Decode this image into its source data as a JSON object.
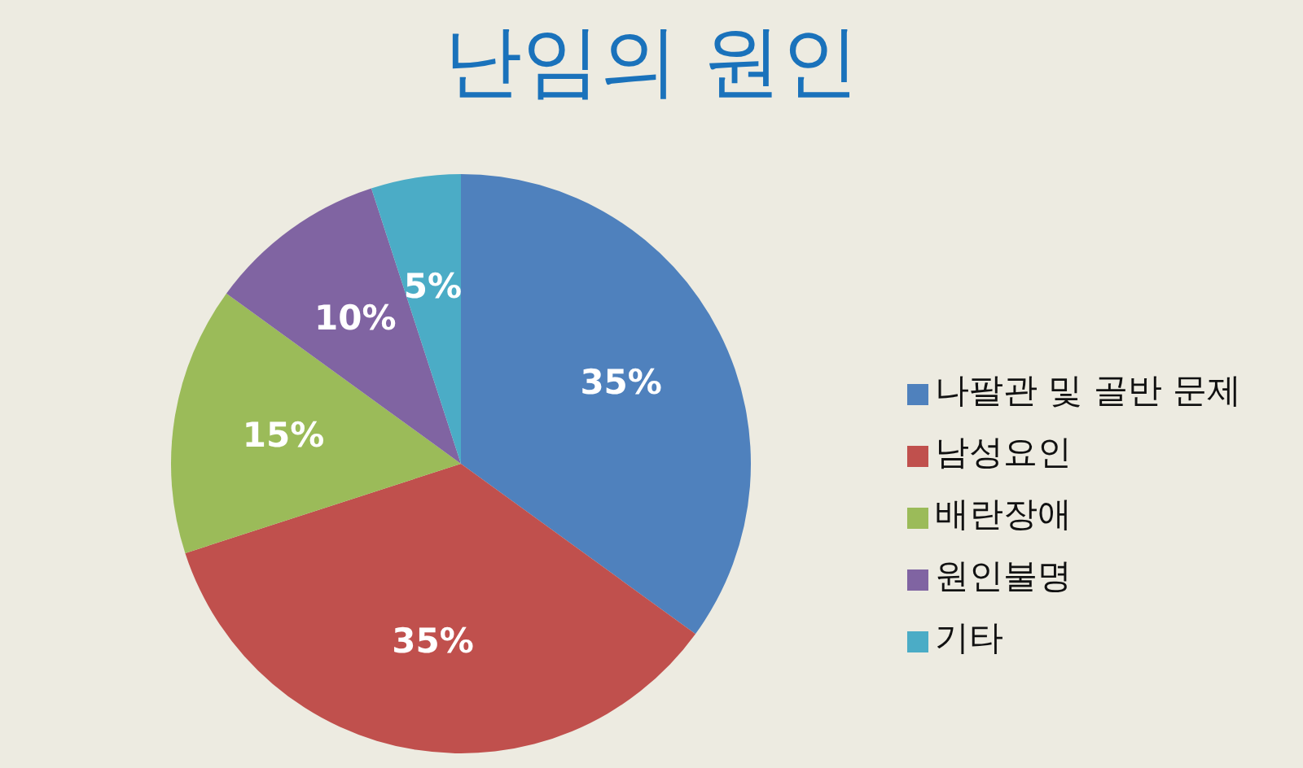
{
  "chart_data": {
    "type": "pie",
    "title": "난임의 원인",
    "categories": [
      "나팔관 및 골반 문제",
      "남성요인",
      "배란장애",
      "원인불명",
      "기타"
    ],
    "values": [
      35,
      35,
      15,
      10,
      5
    ],
    "value_labels": [
      "35%",
      "35%",
      "15%",
      "10%",
      "5%"
    ],
    "colors": [
      "#4f81bd",
      "#c0504d",
      "#9bbb59",
      "#8064a2",
      "#4bacc6"
    ],
    "legend": "right"
  }
}
